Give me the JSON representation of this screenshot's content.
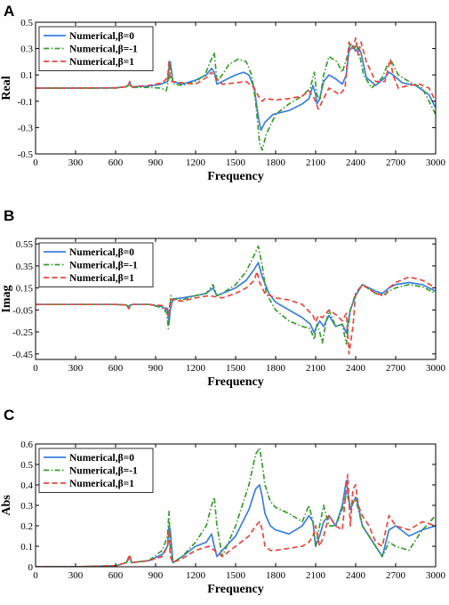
{
  "colors": {
    "beta0": "#3b7fe0",
    "betaNeg1": "#3a9b2e",
    "beta1": "#e8473f"
  },
  "chart_data": [
    {
      "panel": "A",
      "type": "line",
      "xlabel": "Frequency",
      "ylabel": "Real",
      "xlim": [
        0,
        3000
      ],
      "ylim": [
        -0.5,
        0.5
      ],
      "xticks": [
        0,
        300,
        600,
        900,
        1200,
        1500,
        1800,
        2100,
        2400,
        2700,
        3000
      ],
      "yticks": [
        -0.5,
        -0.3,
        -0.1,
        0.1,
        0.3,
        0.5
      ],
      "ytick_labels": [
        "-0.5",
        "-0.3",
        "-0.1",
        "0.1",
        "0.3",
        "0.5"
      ],
      "grid": false,
      "legend_position": "top-left",
      "series": [
        {
          "name": "Numerical,β=0",
          "style": "solid",
          "x": [
            0,
            300,
            600,
            680,
            700,
            705,
            720,
            850,
            940,
            990,
            1000,
            1010,
            1030,
            1100,
            1200,
            1280,
            1320,
            1340,
            1360,
            1420,
            1500,
            1560,
            1600,
            1640,
            1670,
            1690,
            1720,
            1780,
            1900,
            2000,
            2050,
            2080,
            2100,
            2110,
            2130,
            2160,
            2200,
            2250,
            2300,
            2330,
            2350,
            2380,
            2400,
            2420,
            2440,
            2480,
            2550,
            2620,
            2650,
            2680,
            2750,
            2850,
            2950,
            3000
          ],
          "y": [
            0,
            0,
            0.002,
            0.01,
            0.03,
            0.05,
            0.01,
            0.015,
            0.03,
            0.05,
            0.15,
            0.2,
            0.05,
            0.03,
            0.06,
            0.1,
            0.15,
            0.12,
            0.03,
            0.06,
            0.1,
            0.12,
            0.1,
            0.0,
            -0.22,
            -0.32,
            -0.26,
            -0.2,
            -0.17,
            -0.12,
            -0.08,
            0.02,
            -0.05,
            -0.12,
            -0.08,
            0.05,
            0.1,
            0.07,
            0.03,
            0.1,
            0.28,
            0.32,
            0.28,
            0.31,
            0.27,
            0.08,
            0.02,
            0.08,
            0.12,
            0.1,
            0.04,
            0.02,
            -0.05,
            -0.15
          ]
        },
        {
          "name": "Numerical,β=-1",
          "style": "dashdot",
          "x": [
            0,
            300,
            600,
            680,
            700,
            705,
            720,
            850,
            940,
            980,
            995,
            1005,
            1015,
            1040,
            1100,
            1200,
            1270,
            1310,
            1340,
            1360,
            1400,
            1450,
            1520,
            1580,
            1620,
            1650,
            1680,
            1700,
            1730,
            1800,
            1900,
            2000,
            2060,
            2090,
            2110,
            2130,
            2160,
            2200,
            2260,
            2300,
            2340,
            2360,
            2390,
            2410,
            2430,
            2460,
            2520,
            2600,
            2640,
            2670,
            2720,
            2800,
            2900,
            3000
          ],
          "y": [
            0,
            0,
            0,
            0.01,
            0.02,
            0.03,
            0.005,
            0.005,
            0.0,
            -0.02,
            0.05,
            0.2,
            0.1,
            0.03,
            0.02,
            0.05,
            0.1,
            0.2,
            0.27,
            0.05,
            0.1,
            0.18,
            0.22,
            0.2,
            0.1,
            -0.1,
            -0.42,
            -0.47,
            -0.35,
            -0.2,
            -0.12,
            -0.06,
            0.0,
            0.12,
            -0.05,
            -0.1,
            0.1,
            0.24,
            0.2,
            0.12,
            0.25,
            0.34,
            0.3,
            0.34,
            0.25,
            0.1,
            0.0,
            0.08,
            0.18,
            0.2,
            0.1,
            0.05,
            0.0,
            -0.2
          ]
        },
        {
          "name": "Numerical,β=1",
          "style": "dashed",
          "x": [
            0,
            300,
            600,
            680,
            700,
            705,
            720,
            850,
            950,
            990,
            1000,
            1010,
            1030,
            1100,
            1200,
            1280,
            1320,
            1350,
            1400,
            1500,
            1580,
            1640,
            1680,
            1700,
            1720,
            1800,
            1900,
            2000,
            2050,
            2090,
            2120,
            2150,
            2200,
            2280,
            2320,
            2350,
            2380,
            2400,
            2420,
            2440,
            2480,
            2550,
            2620,
            2660,
            2680,
            2720,
            2800,
            2880,
            2950,
            3000
          ],
          "y": [
            0,
            0,
            0.002,
            0.01,
            0.03,
            0.05,
            0.01,
            0.02,
            0.04,
            0.08,
            0.2,
            0.05,
            0.05,
            0.04,
            0.03,
            0.08,
            0.12,
            0.08,
            0.03,
            0.04,
            0.05,
            0.0,
            -0.08,
            -0.1,
            -0.08,
            -0.09,
            -0.08,
            -0.06,
            -0.02,
            -0.08,
            -0.16,
            -0.1,
            0.0,
            -0.05,
            0.0,
            0.35,
            0.3,
            0.38,
            0.25,
            0.35,
            0.2,
            0.05,
            0.05,
            0.22,
            0.1,
            0.0,
            0.02,
            0.03,
            0.0,
            -0.1
          ]
        }
      ]
    },
    {
      "panel": "B",
      "type": "line",
      "xlabel": "Frequency",
      "ylabel": "Imag",
      "xlim": [
        0,
        3000
      ],
      "ylim": [
        -0.5,
        0.6
      ],
      "xticks": [
        0,
        300,
        600,
        900,
        1200,
        1500,
        1800,
        2100,
        2400,
        2700,
        3000
      ],
      "yticks": [
        -0.45,
        -0.25,
        -0.05,
        0.15,
        0.35,
        0.55
      ],
      "ytick_labels": [
        "-0.45",
        "-0.25",
        "-0.05",
        "0.15",
        "0.35",
        "0.55"
      ],
      "grid": false,
      "legend_position": "top-left",
      "series": [
        {
          "name": "Numerical,β=0",
          "style": "solid",
          "x": [
            0,
            300,
            600,
            680,
            700,
            710,
            730,
            850,
            950,
            990,
            1000,
            1010,
            1030,
            1100,
            1200,
            1280,
            1330,
            1360,
            1400,
            1500,
            1580,
            1640,
            1670,
            1700,
            1750,
            1800,
            1900,
            2000,
            2060,
            2090,
            2100,
            2130,
            2160,
            2200,
            2250,
            2300,
            2330,
            2360,
            2400,
            2450,
            2550,
            2600,
            2650,
            2700,
            2800,
            2900,
            3000
          ],
          "y": [
            0,
            0,
            0,
            -0.005,
            -0.02,
            -0.005,
            0,
            0,
            -0.02,
            -0.06,
            -0.18,
            -0.05,
            0.05,
            0.06,
            0.08,
            0.1,
            0.15,
            0.08,
            0.1,
            0.15,
            0.22,
            0.32,
            0.38,
            0.25,
            0.1,
            0.02,
            -0.05,
            -0.12,
            -0.18,
            -0.26,
            -0.22,
            -0.15,
            -0.2,
            -0.1,
            -0.2,
            -0.18,
            -0.26,
            -0.05,
            0.08,
            0.18,
            0.12,
            0.1,
            0.15,
            0.18,
            0.2,
            0.18,
            0.12
          ]
        },
        {
          "name": "Numerical,β=-1",
          "style": "dashdot",
          "x": [
            0,
            300,
            600,
            680,
            700,
            710,
            730,
            850,
            950,
            985,
            995,
            1005,
            1015,
            1030,
            1100,
            1200,
            1280,
            1330,
            1360,
            1400,
            1500,
            1580,
            1640,
            1670,
            1700,
            1730,
            1800,
            1900,
            2000,
            2060,
            2090,
            2110,
            2130,
            2150,
            2180,
            2200,
            2250,
            2300,
            2330,
            2360,
            2400,
            2450,
            2550,
            2600,
            2650,
            2700,
            2800,
            2900,
            3000
          ],
          "y": [
            0,
            0,
            0,
            -0.005,
            -0.03,
            -0.005,
            0,
            0,
            -0.03,
            -0.08,
            -0.22,
            -0.05,
            0.08,
            0.05,
            0.04,
            0.08,
            0.1,
            0.18,
            0.08,
            0.1,
            0.18,
            0.3,
            0.45,
            0.53,
            0.35,
            0.1,
            -0.05,
            -0.15,
            -0.2,
            -0.22,
            -0.32,
            -0.18,
            -0.25,
            -0.35,
            -0.15,
            -0.05,
            -0.2,
            -0.18,
            -0.36,
            -0.05,
            0.1,
            0.18,
            0.1,
            0.08,
            0.12,
            0.15,
            0.18,
            0.16,
            0.1
          ]
        },
        {
          "name": "Numerical,β=1",
          "style": "dashed",
          "x": [
            0,
            300,
            600,
            680,
            700,
            710,
            730,
            850,
            950,
            990,
            1000,
            1010,
            1030,
            1100,
            1200,
            1300,
            1400,
            1500,
            1580,
            1640,
            1660,
            1680,
            1720,
            1800,
            1900,
            2000,
            2080,
            2100,
            2120,
            2150,
            2200,
            2260,
            2300,
            2330,
            2350,
            2380,
            2400,
            2450,
            2550,
            2620,
            2650,
            2700,
            2800,
            2900,
            3000
          ],
          "y": [
            0,
            0,
            0,
            -0.005,
            -0.04,
            -0.005,
            0,
            0,
            -0.01,
            -0.04,
            -0.1,
            0.05,
            0.04,
            0.03,
            0.06,
            0.08,
            0.06,
            0.1,
            0.15,
            0.22,
            0.3,
            0.2,
            0.1,
            0.06,
            0.04,
            0.0,
            -0.1,
            -0.16,
            -0.1,
            -0.12,
            -0.05,
            -0.1,
            -0.15,
            -0.08,
            -0.45,
            -0.2,
            0.1,
            0.18,
            0.1,
            0.08,
            0.15,
            0.2,
            0.25,
            0.22,
            0.15
          ]
        }
      ]
    },
    {
      "panel": "C",
      "type": "line",
      "xlabel": "Frequency",
      "ylabel": "Abs",
      "xlim": [
        0,
        3000
      ],
      "ylim": [
        0,
        0.6
      ],
      "xticks": [
        0,
        300,
        600,
        900,
        1200,
        1500,
        1800,
        2100,
        2400,
        2700,
        3000
      ],
      "yticks": [
        0,
        0.1,
        0.2,
        0.3,
        0.4,
        0.5,
        0.6
      ],
      "ytick_labels": [
        "0",
        "0.1",
        "0.2",
        "0.3",
        "0.4",
        "0.5",
        "0.6"
      ],
      "grid": false,
      "legend_position": "top-left",
      "series": [
        {
          "name": "Numerical,β=0",
          "style": "solid",
          "x": [
            0,
            300,
            600,
            680,
            700,
            705,
            720,
            850,
            950,
            990,
            1000,
            1010,
            1030,
            1100,
            1200,
            1280,
            1320,
            1340,
            1360,
            1400,
            1500,
            1600,
            1650,
            1680,
            1700,
            1720,
            1760,
            1800,
            1900,
            2000,
            2050,
            2080,
            2100,
            2130,
            2160,
            2200,
            2250,
            2300,
            2330,
            2360,
            2400,
            2420,
            2450,
            2500,
            2550,
            2600,
            2650,
            2700,
            2800,
            2900,
            3000
          ],
          "y": [
            0,
            0,
            0.005,
            0.02,
            0.04,
            0.05,
            0.02,
            0.03,
            0.06,
            0.1,
            0.2,
            0.18,
            0.02,
            0.05,
            0.1,
            0.12,
            0.16,
            0.1,
            0.05,
            0.08,
            0.15,
            0.28,
            0.38,
            0.4,
            0.34,
            0.26,
            0.2,
            0.18,
            0.16,
            0.2,
            0.25,
            0.22,
            0.1,
            0.15,
            0.22,
            0.25,
            0.2,
            0.3,
            0.42,
            0.28,
            0.34,
            0.3,
            0.2,
            0.15,
            0.1,
            0.05,
            0.18,
            0.2,
            0.15,
            0.18,
            0.2
          ]
        },
        {
          "name": "Numerical,β=-1",
          "style": "dashdot",
          "x": [
            0,
            300,
            600,
            680,
            700,
            705,
            720,
            850,
            950,
            990,
            1000,
            1010,
            1030,
            1100,
            1200,
            1280,
            1320,
            1340,
            1360,
            1400,
            1500,
            1600,
            1650,
            1680,
            1700,
            1720,
            1760,
            1800,
            1900,
            2000,
            2050,
            2080,
            2100,
            2130,
            2160,
            2200,
            2250,
            2300,
            2330,
            2360,
            2400,
            2420,
            2450,
            2500,
            2550,
            2600,
            2650,
            2700,
            2800,
            2900,
            3000
          ],
          "y": [
            0,
            0,
            0.005,
            0.02,
            0.04,
            0.05,
            0.02,
            0.03,
            0.08,
            0.15,
            0.27,
            0.1,
            0.02,
            0.05,
            0.12,
            0.2,
            0.3,
            0.34,
            0.2,
            0.05,
            0.2,
            0.4,
            0.55,
            0.58,
            0.5,
            0.4,
            0.32,
            0.29,
            0.26,
            0.22,
            0.3,
            0.22,
            0.1,
            0.2,
            0.3,
            0.2,
            0.2,
            0.28,
            0.36,
            0.3,
            0.33,
            0.28,
            0.2,
            0.15,
            0.1,
            0.05,
            0.12,
            0.1,
            0.08,
            0.18,
            0.25
          ]
        },
        {
          "name": "Numerical,β=1",
          "style": "dashed",
          "x": [
            0,
            300,
            600,
            680,
            700,
            705,
            720,
            850,
            950,
            990,
            1000,
            1010,
            1030,
            1100,
            1200,
            1300,
            1400,
            1500,
            1600,
            1650,
            1680,
            1700,
            1720,
            1760,
            1800,
            1900,
            2000,
            2050,
            2080,
            2100,
            2130,
            2160,
            2200,
            2250,
            2300,
            2340,
            2360,
            2380,
            2400,
            2420,
            2450,
            2500,
            2550,
            2600,
            2650,
            2700,
            2800,
            2900,
            3000
          ],
          "y": [
            0,
            0,
            0.005,
            0.02,
            0.05,
            0.06,
            0.02,
            0.03,
            0.05,
            0.1,
            0.18,
            0.05,
            0.02,
            0.04,
            0.08,
            0.1,
            0.05,
            0.1,
            0.15,
            0.2,
            0.22,
            0.18,
            0.1,
            0.08,
            0.08,
            0.09,
            0.1,
            0.12,
            0.15,
            0.2,
            0.1,
            0.15,
            0.25,
            0.2,
            0.18,
            0.45,
            0.2,
            0.38,
            0.4,
            0.3,
            0.25,
            0.2,
            0.12,
            0.1,
            0.25,
            0.2,
            0.18,
            0.22,
            0.2
          ]
        }
      ]
    }
  ]
}
